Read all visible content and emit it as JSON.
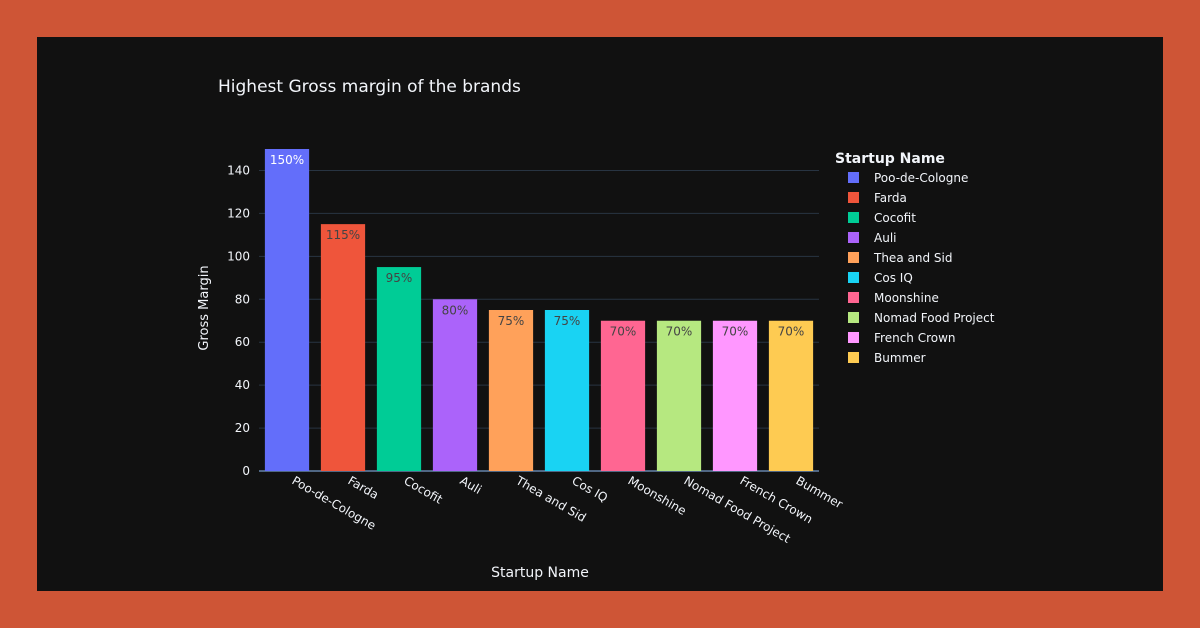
{
  "colors": {
    "frame_background": "#CE5536",
    "plot_background": "#111111",
    "text": "#F2F5FA",
    "grid": "#283442"
  },
  "chart_data": {
    "type": "bar",
    "title": "Highest Gross margin of the brands",
    "xlabel": "Startup Name",
    "ylabel": "Gross Margin",
    "ylim": [
      0,
      150
    ],
    "yticks": [
      0,
      20,
      40,
      60,
      80,
      100,
      120,
      140
    ],
    "grid": true,
    "legend": {
      "title": "Startup Name",
      "placement": "right"
    },
    "categories": [
      "Poo-de-Cologne",
      "Farda",
      "Cocofit",
      "Auli",
      "Thea and Sid",
      "Cos IQ",
      "Moonshine",
      "Nomad Food Project",
      "French Crown",
      "Bummer"
    ],
    "values": [
      150,
      115,
      95,
      80,
      75,
      75,
      70,
      70,
      70,
      70
    ],
    "data_labels": [
      "150%",
      "115%",
      "95%",
      "80%",
      "75%",
      "75%",
      "70%",
      "70%",
      "70%",
      "70%"
    ],
    "series_colors": [
      "#636EFA",
      "#EF553B",
      "#00CC96",
      "#AB63FA",
      "#FFA15A",
      "#19D3F3",
      "#FF6692",
      "#B6E880",
      "#FF97FF",
      "#FECB52"
    ]
  }
}
